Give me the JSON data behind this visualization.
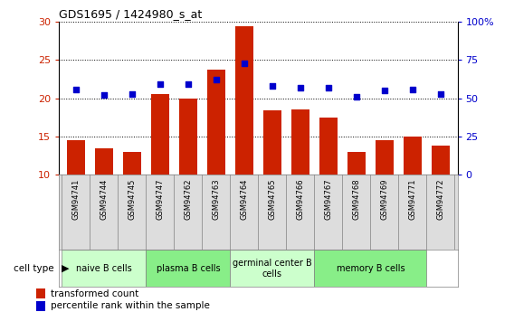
{
  "title": "GDS1695 / 1424980_s_at",
  "samples": [
    "GSM94741",
    "GSM94744",
    "GSM94745",
    "GSM94747",
    "GSM94762",
    "GSM94763",
    "GSM94764",
    "GSM94765",
    "GSM94766",
    "GSM94767",
    "GSM94768",
    "GSM94769",
    "GSM94771",
    "GSM94772"
  ],
  "bar_values": [
    14.5,
    13.5,
    13.0,
    20.5,
    20.0,
    23.8,
    29.4,
    18.4,
    18.6,
    17.5,
    13.0,
    14.5,
    15.0,
    13.8
  ],
  "dot_values": [
    56,
    52,
    53,
    59,
    59,
    62,
    73,
    58,
    57,
    57,
    51,
    55,
    56,
    53
  ],
  "bar_color": "#cc2200",
  "dot_color": "#0000cc",
  "ylim_left": [
    10,
    30
  ],
  "ylim_right": [
    0,
    100
  ],
  "yticks_left": [
    10,
    15,
    20,
    25,
    30
  ],
  "yticks_right": [
    0,
    25,
    50,
    75,
    100
  ],
  "ytick_labels_right": [
    "0",
    "25",
    "50",
    "75",
    "100%"
  ],
  "cell_groups": [
    {
      "label": "naive B cells",
      "start": 0,
      "end": 3,
      "color": "#ccffcc"
    },
    {
      "label": "plasma B cells",
      "start": 3,
      "end": 6,
      "color": "#88ee88"
    },
    {
      "label": "germinal center B\ncells",
      "start": 6,
      "end": 9,
      "color": "#ccffcc"
    },
    {
      "label": "memory B cells",
      "start": 9,
      "end": 13,
      "color": "#88ee88"
    }
  ],
  "legend_bar_label": "transformed count",
  "legend_dot_label": "percentile rank within the sample",
  "cell_type_label": "cell type",
  "background_color": "#ffffff",
  "sample_bg_color": "#dddddd",
  "tick_label_color_left": "#cc2200",
  "tick_label_color_right": "#0000cc"
}
